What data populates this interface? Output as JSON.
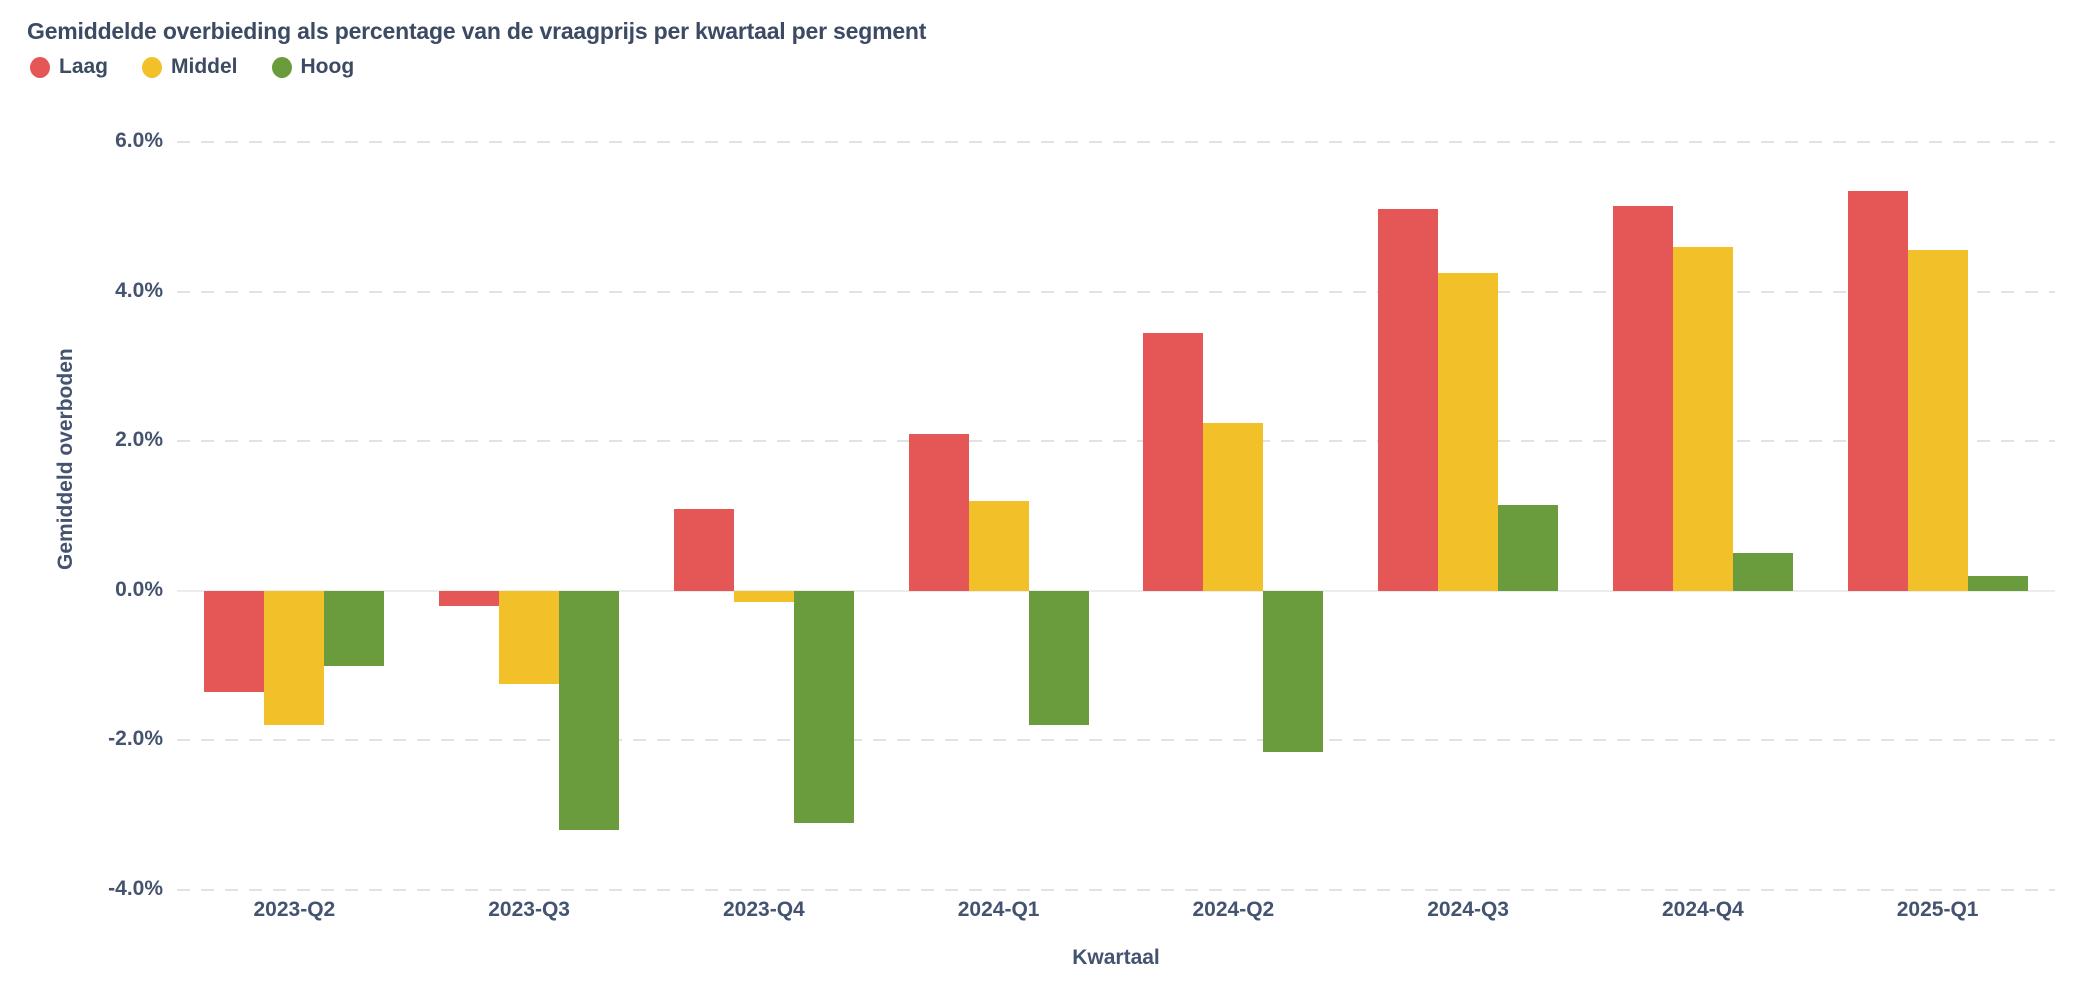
{
  "header": {
    "title": "Gemiddelde overbieding als percentage van de vraagprijs per kwartaal per segment"
  },
  "chart_data": {
    "type": "bar",
    "title": "Gemiddelde overbieding als percentage van de vraagprijs per kwartaal per segment",
    "xlabel": "Kwartaal",
    "ylabel": "Gemiddeld overboden",
    "categories": [
      "2023-Q2",
      "2023-Q3",
      "2023-Q4",
      "2024-Q1",
      "2024-Q2",
      "2024-Q3",
      "2024-Q4",
      "2025-Q1"
    ],
    "series": [
      {
        "name": "Laag",
        "color": "#E45756",
        "values": [
          -1.35,
          -0.2,
          1.1,
          2.1,
          3.45,
          5.1,
          5.15,
          5.35
        ]
      },
      {
        "name": "Middel",
        "color": "#F2C029",
        "values": [
          -1.8,
          -1.25,
          -0.15,
          1.2,
          2.25,
          4.25,
          4.6,
          4.55
        ]
      },
      {
        "name": "Hoog",
        "color": "#6A9B3C",
        "values": [
          -1.0,
          -3.2,
          -3.1,
          -1.8,
          -2.15,
          1.15,
          0.5,
          0.2
        ]
      }
    ],
    "ylim": [
      -4,
      6
    ],
    "ytick_values": [
      6,
      4,
      2,
      0,
      -2,
      -4
    ],
    "ytick_labels": [
      "6.0%",
      "4.0%",
      "2.0%",
      "0.0%",
      "-2.0%",
      "-4.0%"
    ],
    "value_format": "percent",
    "grid": "horizontal dashed gridlines, solid zero line, no vertical grid",
    "legend_position": "top-left"
  },
  "colors": {
    "background": "#FFFFFF",
    "title_text": "#3C4A63",
    "axis_text": "#44536F",
    "gridline": "#E2E2E2",
    "zero_line": "#ECECEC"
  }
}
